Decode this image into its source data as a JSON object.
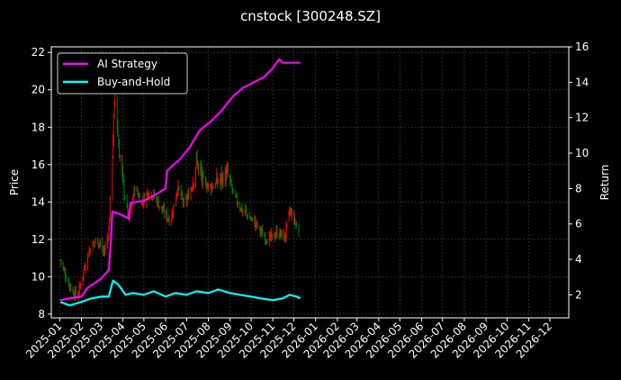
{
  "chart_data": {
    "type": "line",
    "title": "cnstock [300248.SZ]",
    "ylabel_left": "Price",
    "ylabel_right": "Return",
    "ylim_left": [
      7.8,
      22.3
    ],
    "ylim_right": [
      0.7,
      16.0
    ],
    "xlim": [
      "2024-12-20",
      "2026-12-28"
    ],
    "left_ticks": [
      8,
      10,
      12,
      14,
      16,
      18,
      20,
      22
    ],
    "right_ticks": [
      2,
      4,
      6,
      8,
      10,
      12,
      14,
      16
    ],
    "x_ticks": [
      "2025-01",
      "2025-02",
      "2025-03",
      "2025-04",
      "2025-05",
      "2025-06",
      "2025-07",
      "2025-08",
      "2025-09",
      "2025-10",
      "2025-11",
      "2025-12",
      "2026-01",
      "2026-02",
      "2026-03",
      "2026-04",
      "2026-05",
      "2026-06",
      "2026-07",
      "2026-08",
      "2026-09",
      "2026-10",
      "2026-11",
      "2026-12"
    ],
    "grid": true,
    "legend_position": "top-left",
    "price_candles": {
      "up_color": "#ff0000",
      "down_color": "#008000",
      "close_points": [
        [
          "2025-01-02",
          10.9
        ],
        [
          "2025-01-10",
          10.0
        ],
        [
          "2025-01-20",
          9.2
        ],
        [
          "2025-01-27",
          9.0
        ],
        [
          "2025-02-05",
          10.5
        ],
        [
          "2025-02-14",
          11.6
        ],
        [
          "2025-02-24",
          12.0
        ],
        [
          "2025-03-05",
          11.3
        ],
        [
          "2025-03-12",
          12.4
        ],
        [
          "2025-03-18",
          17.5
        ],
        [
          "2025-03-21",
          19.8
        ],
        [
          "2025-03-26",
          17.0
        ],
        [
          "2025-04-03",
          14.5
        ],
        [
          "2025-04-10",
          13.0
        ],
        [
          "2025-04-18",
          14.8
        ],
        [
          "2025-04-28",
          14.0
        ],
        [
          "2025-05-08",
          14.6
        ],
        [
          "2025-05-18",
          14.2
        ],
        [
          "2025-05-28",
          13.5
        ],
        [
          "2025-06-08",
          13.0
        ],
        [
          "2025-06-18",
          14.8
        ],
        [
          "2025-06-28",
          13.8
        ],
        [
          "2025-07-08",
          14.8
        ],
        [
          "2025-07-15",
          16.2
        ],
        [
          "2025-07-25",
          15.0
        ],
        [
          "2025-08-05",
          14.8
        ],
        [
          "2025-08-18",
          15.2
        ],
        [
          "2025-08-28",
          15.5
        ],
        [
          "2025-09-08",
          14.2
        ],
        [
          "2025-09-18",
          13.6
        ],
        [
          "2025-09-28",
          13.2
        ],
        [
          "2025-10-08",
          12.8
        ],
        [
          "2025-10-18",
          12.2
        ],
        [
          "2025-10-28",
          12.0
        ],
        [
          "2025-11-08",
          12.4
        ],
        [
          "2025-11-18",
          12.1
        ],
        [
          "2025-11-25",
          13.5
        ],
        [
          "2025-12-02",
          13.0
        ],
        [
          "2025-12-08",
          12.3
        ]
      ]
    },
    "series": [
      {
        "name": "AI Strategy",
        "color": "#ff00ff",
        "axis": "right",
        "points": [
          [
            "2025-01-02",
            1.7
          ],
          [
            "2025-01-15",
            1.8
          ],
          [
            "2025-02-01",
            1.9
          ],
          [
            "2025-02-10",
            2.4
          ],
          [
            "2025-03-01",
            2.9
          ],
          [
            "2025-03-12",
            3.4
          ],
          [
            "2025-03-15",
            5.0
          ],
          [
            "2025-03-17",
            6.7
          ],
          [
            "2025-03-25",
            6.6
          ],
          [
            "2025-04-10",
            6.3
          ],
          [
            "2025-04-12",
            7.2
          ],
          [
            "2025-05-01",
            7.3
          ],
          [
            "2025-05-15",
            7.6
          ],
          [
            "2025-06-01",
            8.0
          ],
          [
            "2025-06-03",
            9.0
          ],
          [
            "2025-06-20",
            9.6
          ],
          [
            "2025-07-05",
            10.3
          ],
          [
            "2025-07-20",
            11.3
          ],
          [
            "2025-08-05",
            11.8
          ],
          [
            "2025-08-20",
            12.4
          ],
          [
            "2025-09-05",
            13.2
          ],
          [
            "2025-09-20",
            13.7
          ],
          [
            "2025-10-05",
            14.0
          ],
          [
            "2025-10-20",
            14.3
          ],
          [
            "2025-11-01",
            14.8
          ],
          [
            "2025-11-10",
            15.3
          ],
          [
            "2025-11-15",
            15.1
          ],
          [
            "2025-11-25",
            15.1
          ],
          [
            "2025-12-10",
            15.1
          ]
        ]
      },
      {
        "name": "Buy-and-Hold",
        "color": "#00ffff",
        "axis": "right",
        "points": [
          [
            "2025-01-02",
            1.6
          ],
          [
            "2025-01-15",
            1.4
          ],
          [
            "2025-02-01",
            1.6
          ],
          [
            "2025-02-15",
            1.8
          ],
          [
            "2025-03-01",
            1.9
          ],
          [
            "2025-03-12",
            1.9
          ],
          [
            "2025-03-18",
            2.8
          ],
          [
            "2025-03-25",
            2.6
          ],
          [
            "2025-04-05",
            2.0
          ],
          [
            "2025-04-15",
            2.1
          ],
          [
            "2025-05-01",
            2.0
          ],
          [
            "2025-05-15",
            2.2
          ],
          [
            "2025-06-01",
            1.9
          ],
          [
            "2025-06-15",
            2.1
          ],
          [
            "2025-07-01",
            2.0
          ],
          [
            "2025-07-15",
            2.2
          ],
          [
            "2025-08-01",
            2.1
          ],
          [
            "2025-08-15",
            2.3
          ],
          [
            "2025-09-01",
            2.1
          ],
          [
            "2025-09-15",
            2.0
          ],
          [
            "2025-10-01",
            1.9
          ],
          [
            "2025-10-15",
            1.8
          ],
          [
            "2025-11-01",
            1.7
          ],
          [
            "2025-11-15",
            1.8
          ],
          [
            "2025-11-25",
            2.0
          ],
          [
            "2025-12-05",
            1.9
          ],
          [
            "2025-12-10",
            1.8
          ]
        ]
      }
    ]
  }
}
